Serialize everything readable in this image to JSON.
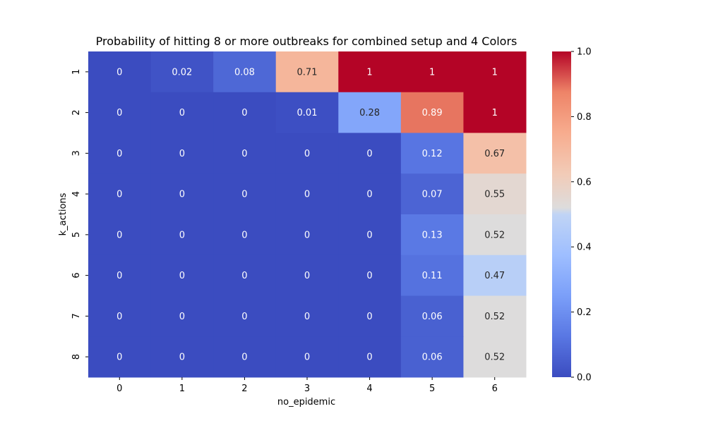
{
  "chart_data": {
    "type": "heatmap",
    "title": "Probability of hitting 8 or more outbreaks for combined setup and 4 Colors",
    "xlabel": "no_epidemic",
    "ylabel": "k_actions",
    "x": [
      "0",
      "1",
      "2",
      "3",
      "4",
      "5",
      "6"
    ],
    "y": [
      "1",
      "2",
      "3",
      "4",
      "5",
      "6",
      "7",
      "8"
    ],
    "values": [
      [
        0,
        0.02,
        0.08,
        0.71,
        1,
        1,
        1
      ],
      [
        0,
        0,
        0,
        0.01,
        0.28,
        0.89,
        1
      ],
      [
        0,
        0,
        0,
        0,
        0,
        0.12,
        0.67
      ],
      [
        0,
        0,
        0,
        0,
        0,
        0.07,
        0.55
      ],
      [
        0,
        0,
        0,
        0,
        0,
        0.13,
        0.52
      ],
      [
        0,
        0,
        0,
        0,
        0,
        0.11,
        0.47
      ],
      [
        0,
        0,
        0,
        0,
        0,
        0.06,
        0.52
      ],
      [
        0,
        0,
        0,
        0,
        0,
        0.06,
        0.52
      ]
    ],
    "colormap": "coolwarm",
    "colorbar": {
      "range": [
        0.0,
        1.0
      ],
      "ticks": [
        "0.0",
        "0.2",
        "0.4",
        "0.6",
        "0.8",
        "1.0"
      ],
      "tick_values": [
        0,
        0.2,
        0.4,
        0.6,
        0.8,
        1.0
      ]
    },
    "annotated": true,
    "grid": false
  }
}
